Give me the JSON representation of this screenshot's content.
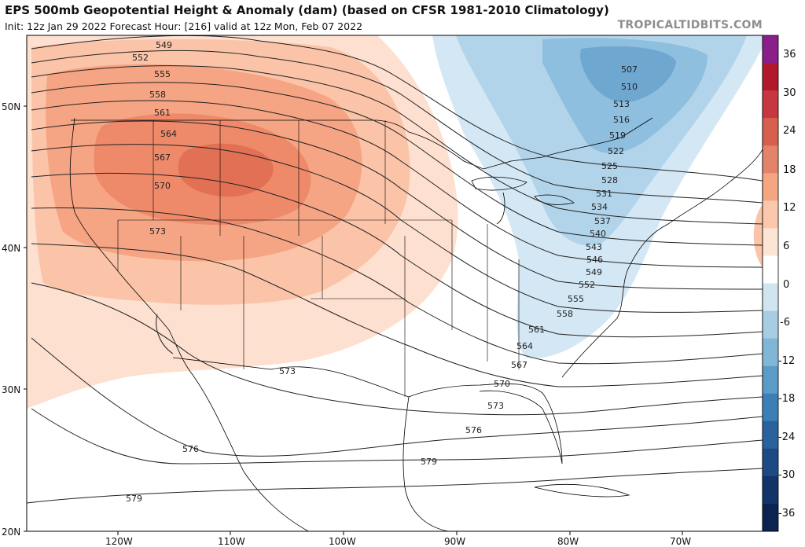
{
  "header": {
    "title": "EPS 500mb Geopotential Height & Anomaly (dam) (based on CFSR 1981-2010 Climatology)",
    "subtitle": "Init: 12z Jan 29 2022   Forecast Hour: [216]   valid at 12z Mon, Feb 07 2022",
    "brand": "TROPICALTIDBITS.COM"
  },
  "map": {
    "lat_labels": [
      "50N",
      "40N",
      "30N",
      "20N"
    ],
    "lon_labels": [
      "120W",
      "110W",
      "100W",
      "90W",
      "80W",
      "70W"
    ],
    "height_contours_dam": [
      "507",
      "510",
      "513",
      "516",
      "519",
      "522",
      "525",
      "528",
      "531",
      "534",
      "537",
      "540",
      "543",
      "546",
      "549",
      "552",
      "555",
      "558",
      "561",
      "564",
      "567",
      "570",
      "573",
      "576",
      "579"
    ],
    "upper_ridge_labels": [
      "549",
      "552",
      "555",
      "558",
      "561",
      "564",
      "567",
      "570",
      "573"
    ],
    "anomaly_colors": {
      "positive": [
        "#fde0cf",
        "#fbc4a8",
        "#f6a584",
        "#ee8a6a",
        "#e27055"
      ],
      "negative": [
        "#d3e7f4",
        "#b2d4ea",
        "#8fbfdf",
        "#6ea7d0"
      ]
    }
  },
  "colorbar": {
    "labels": [
      "36",
      "30",
      "24",
      "18",
      "12",
      "6",
      "0",
      "-6",
      "-12",
      "-18",
      "-24",
      "-30",
      "-36"
    ],
    "colors": [
      "#8a1f8a",
      "#b2182b",
      "#c7373f",
      "#d6604d",
      "#e38369",
      "#f4a582",
      "#fbc8ac",
      "#fde5d6",
      "#ffffff",
      "#d1e5f0",
      "#a7cde3",
      "#82b6d7",
      "#5a9bc7",
      "#3b7fb6",
      "#2a629e",
      "#1d4a85",
      "#123468",
      "#0b2350"
    ]
  }
}
